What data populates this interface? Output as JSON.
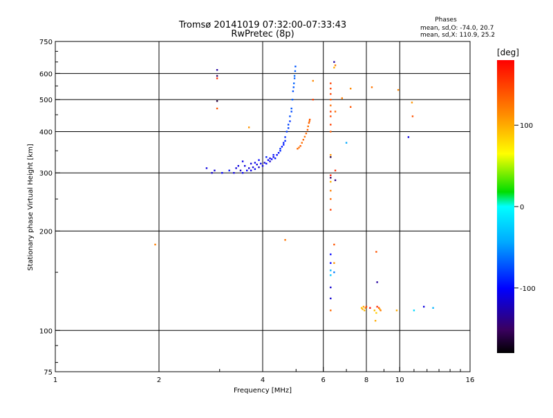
{
  "title_line1": "Tromsø 20141019 07:32:00-07:33:43",
  "title_line2": "RwPretec (8p)",
  "phase_header": "Phases",
  "phase_stats": [
    "mean, sd,O: -74.0, 20.7",
    "mean, sd,X: 110.9, 25.2"
  ],
  "chart_data": {
    "type": "scatter",
    "xlabel": "Frequency [MHz]",
    "ylabel": "Stationary phase Virtual Height [km]",
    "xscale": "log",
    "yscale": "log",
    "xlim": [
      1,
      16
    ],
    "ylim": [
      75,
      750
    ],
    "x_ticks": [
      1,
      2,
      4,
      6,
      8,
      10,
      16
    ],
    "y_ticks": [
      75,
      100,
      200,
      300,
      400,
      500,
      600,
      750
    ],
    "x_gridlines": [
      2,
      4,
      6,
      8,
      10
    ],
    "y_gridlines": [
      100,
      200,
      300,
      400,
      500,
      600
    ],
    "colorbar": {
      "label": "[deg]",
      "range": [
        -180,
        180
      ],
      "ticks": [
        100,
        0,
        -100
      ]
    },
    "series": [
      {
        "name": "O-mode trace (blue)",
        "points": [
          [
            2.75,
            310,
            -110
          ],
          [
            2.85,
            300,
            -115
          ],
          [
            2.9,
            305,
            -112
          ],
          [
            3.05,
            300,
            -100
          ],
          [
            3.2,
            305,
            -95
          ],
          [
            3.3,
            300,
            -108
          ],
          [
            3.35,
            310,
            -112
          ],
          [
            3.45,
            305,
            -118
          ],
          [
            3.5,
            300,
            -105
          ],
          [
            3.55,
            315,
            -110
          ],
          [
            3.6,
            305,
            -100
          ],
          [
            3.65,
            310,
            -115
          ],
          [
            3.7,
            305,
            -108
          ],
          [
            3.75,
            312,
            -112
          ],
          [
            3.8,
            308,
            -102
          ],
          [
            3.85,
            318,
            -110
          ],
          [
            3.9,
            312,
            -120
          ],
          [
            3.95,
            320,
            -105
          ],
          [
            4.0,
            315,
            -108
          ],
          [
            4.05,
            322,
            -112
          ],
          [
            4.1,
            320,
            -98
          ],
          [
            4.15,
            328,
            -104
          ],
          [
            4.2,
            325,
            -115
          ],
          [
            4.25,
            330,
            -100
          ],
          [
            4.3,
            335,
            -108
          ],
          [
            4.35,
            332,
            -92
          ],
          [
            4.4,
            340,
            -102
          ],
          [
            4.45,
            345,
            -96
          ],
          [
            4.5,
            350,
            -88
          ],
          [
            4.55,
            360,
            -95
          ],
          [
            4.6,
            370,
            -90
          ],
          [
            4.65,
            385,
            -85
          ],
          [
            4.7,
            400,
            -82
          ],
          [
            4.75,
            420,
            -78
          ],
          [
            4.8,
            445,
            -75
          ],
          [
            4.85,
            470,
            -72
          ],
          [
            4.88,
            500,
            -70
          ],
          [
            4.9,
            530,
            -74
          ],
          [
            4.93,
            560,
            -68
          ],
          [
            4.95,
            590,
            -65
          ],
          [
            4.97,
            610,
            -70
          ],
          [
            4.98,
            630,
            -72
          ],
          [
            3.5,
            325,
            -108
          ],
          [
            3.7,
            320,
            -112
          ],
          [
            3.9,
            328,
            -98
          ],
          [
            4.1,
            335,
            -90
          ],
          [
            4.3,
            340,
            -95
          ],
          [
            4.5,
            355,
            -85
          ],
          [
            4.65,
            375,
            -88
          ],
          [
            4.75,
            410,
            -80
          ],
          [
            4.85,
            460,
            -76
          ],
          [
            4.95,
            580,
            -70
          ],
          [
            3.4,
            315,
            -110
          ],
          [
            3.8,
            322,
            -104
          ],
          [
            4.2,
            332,
            -106
          ],
          [
            4.6,
            365,
            -92
          ],
          [
            4.8,
            430,
            -84
          ],
          [
            4.92,
            545,
            -72
          ]
        ]
      },
      {
        "name": "X-mode trace (red-orange)",
        "points": [
          [
            5.05,
            355,
            130
          ],
          [
            5.1,
            358,
            125
          ],
          [
            5.15,
            362,
            135
          ],
          [
            5.2,
            370,
            128
          ],
          [
            5.25,
            378,
            132
          ],
          [
            5.3,
            386,
            126
          ],
          [
            5.35,
            395,
            130
          ],
          [
            5.4,
            405,
            135
          ],
          [
            5.42,
            415,
            128
          ],
          [
            5.45,
            425,
            132
          ],
          [
            5.47,
            430,
            130
          ],
          [
            5.48,
            435,
            138
          ]
        ]
      },
      {
        "name": "Scattered echoes",
        "points": [
          [
            1.95,
            182,
            120
          ],
          [
            2.95,
            615,
            -130
          ],
          [
            2.95,
            590,
            -150
          ],
          [
            2.95,
            580,
            160
          ],
          [
            2.95,
            495,
            -160
          ],
          [
            2.95,
            470,
            140
          ],
          [
            3.65,
            412,
            110
          ],
          [
            4.65,
            188,
            125
          ],
          [
            5.6,
            570,
            115
          ],
          [
            5.6,
            500,
            150
          ],
          [
            6.3,
            560,
            150
          ],
          [
            6.3,
            540,
            150
          ],
          [
            6.3,
            520,
            150
          ],
          [
            6.3,
            500,
            140
          ],
          [
            6.3,
            480,
            130
          ],
          [
            6.3,
            460,
            150
          ],
          [
            6.3,
            445,
            145
          ],
          [
            6.3,
            420,
            150
          ],
          [
            6.3,
            400,
            135
          ],
          [
            6.3,
            340,
            110
          ],
          [
            6.3,
            335,
            -160
          ],
          [
            6.3,
            295,
            165
          ],
          [
            6.3,
            290,
            -150
          ],
          [
            6.3,
            282,
            100
          ],
          [
            6.3,
            265,
            120
          ],
          [
            6.3,
            250,
            130
          ],
          [
            6.3,
            232,
            150
          ],
          [
            6.3,
            170,
            -100
          ],
          [
            6.3,
            160,
            -100
          ],
          [
            6.3,
            152,
            -40
          ],
          [
            6.3,
            147,
            -30
          ],
          [
            6.3,
            135,
            -115
          ],
          [
            6.3,
            125,
            -115
          ],
          [
            6.3,
            115,
            130
          ],
          [
            6.45,
            650,
            -130
          ],
          [
            6.45,
            625,
            100
          ],
          [
            6.5,
            460,
            130
          ],
          [
            6.5,
            305,
            160
          ],
          [
            6.5,
            285,
            -140
          ],
          [
            6.45,
            182,
            140
          ],
          [
            6.45,
            160,
            110
          ],
          [
            6.45,
            150,
            -60
          ],
          [
            6.5,
            635,
            120
          ],
          [
            6.8,
            505,
            120
          ],
          [
            7.0,
            370,
            -45
          ],
          [
            7.2,
            540,
            115
          ],
          [
            7.2,
            475,
            140
          ],
          [
            7.75,
            117,
            90
          ],
          [
            7.8,
            116,
            100
          ],
          [
            7.85,
            118,
            105
          ],
          [
            7.9,
            115,
            95
          ],
          [
            7.95,
            117,
            110
          ],
          [
            8.0,
            118,
            150
          ],
          [
            8.2,
            117,
            175
          ],
          [
            8.3,
            545,
            125
          ],
          [
            8.45,
            115,
            95
          ],
          [
            8.5,
            107,
            100
          ],
          [
            8.55,
            113,
            85
          ],
          [
            8.55,
            173,
            140
          ],
          [
            8.6,
            140,
            -130
          ],
          [
            8.6,
            118,
            160
          ],
          [
            8.7,
            117,
            140
          ],
          [
            8.75,
            116,
            100
          ],
          [
            8.8,
            115,
            120
          ],
          [
            9.8,
            115,
            100
          ],
          [
            9.9,
            535,
            115
          ],
          [
            10.6,
            385,
            -110
          ],
          [
            10.85,
            490,
            110
          ],
          [
            10.9,
            445,
            140
          ],
          [
            11.0,
            115,
            -20
          ],
          [
            11.75,
            118,
            -110
          ],
          [
            12.5,
            117,
            -40
          ]
        ]
      }
    ]
  }
}
